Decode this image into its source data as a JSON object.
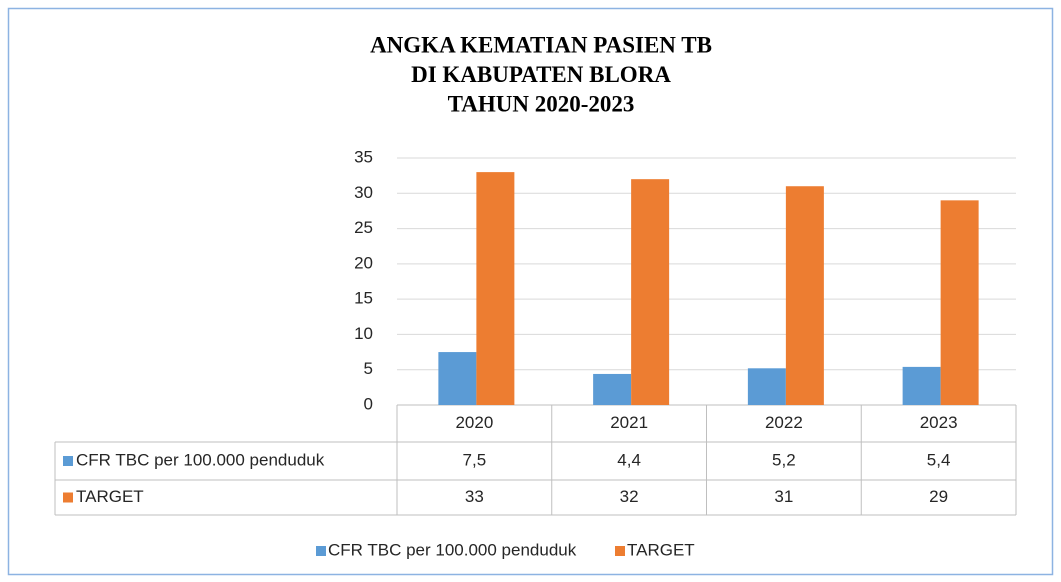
{
  "chart_data": {
    "type": "bar",
    "title": [
      "ANGKA KEMATIAN PASIEN TB",
      "DI KABUPATEN BLORA",
      "TAHUN 2020-2023"
    ],
    "categories": [
      "2020",
      "2021",
      "2022",
      "2023"
    ],
    "series": [
      {
        "name": "CFR TBC per 100.000 penduduk",
        "color": "#5b9bd5",
        "values": [
          7.5,
          4.4,
          5.2,
          5.4
        ],
        "value_labels": [
          "7,5",
          "4,4",
          "5,2",
          "5,4"
        ]
      },
      {
        "name": "TARGET",
        "color": "#ed7d31",
        "values": [
          33,
          32,
          31,
          29
        ]
      }
    ],
    "ylim": [
      0,
      35
    ],
    "yticks": [
      0,
      5,
      10,
      15,
      20,
      25,
      30,
      35
    ],
    "grid": true,
    "legend": "bottom"
  }
}
